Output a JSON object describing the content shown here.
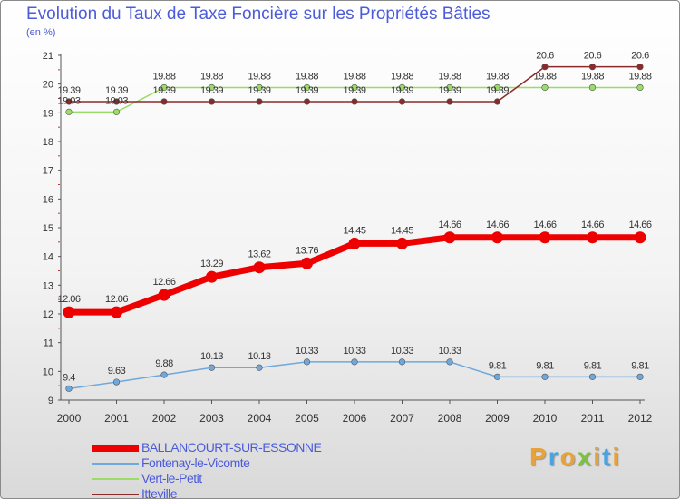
{
  "chart_data": {
    "type": "line",
    "title": "Evolution du Taux de Taxe Foncière sur les Propriétés Bâties",
    "ylabel": "(en %)",
    "xlabel": "",
    "ylim": [
      9,
      21
    ],
    "yticks": [
      "9",
      "10",
      "11",
      "12",
      "13",
      "14",
      "15",
      "16",
      "17",
      "18",
      "19",
      "20",
      "21"
    ],
    "categories": [
      "2000",
      "2001",
      "2002",
      "2003",
      "2004",
      "2005",
      "2006",
      "2007",
      "2008",
      "2009",
      "2010",
      "2011",
      "2012"
    ],
    "series": [
      {
        "name": "BALLANCOURT-SUR-ESSONNE",
        "color": "#ee0000",
        "values": [
          12.06,
          12.06,
          12.66,
          13.29,
          13.62,
          13.76,
          14.45,
          14.45,
          14.66,
          14.66,
          14.66,
          14.66,
          14.66
        ],
        "labels": [
          "12.06",
          "12.06",
          "12.66",
          "13.29",
          "13.62",
          "13.76",
          "14.45",
          "14.45",
          "14.66",
          "14.66",
          "14.66",
          "14.66",
          "14.66"
        ]
      },
      {
        "name": "Fontenay-le-Vicomte",
        "color": "#6fa8dc",
        "values": [
          9.4,
          9.63,
          9.88,
          10.13,
          10.13,
          10.33,
          10.33,
          10.33,
          10.33,
          9.81,
          9.81,
          9.81,
          9.81
        ],
        "labels": [
          "9.4",
          "9.63",
          "9.88",
          "10.13",
          "10.13",
          "10.33",
          "10.33",
          "10.33",
          "10.33",
          "9.81",
          "9.81",
          "9.81",
          "9.81"
        ]
      },
      {
        "name": "Vert-le-Petit",
        "color": "#99dd66",
        "values": [
          19.03,
          19.03,
          19.88,
          19.88,
          19.88,
          19.88,
          19.88,
          19.88,
          19.88,
          19.88,
          19.88,
          19.88,
          19.88
        ],
        "labels": [
          "19.03",
          "19.03",
          "19.88",
          "19.88",
          "19.88",
          "19.88",
          "19.88",
          "19.88",
          "19.88",
          "19.88",
          "19.88",
          "19.88",
          "19.88"
        ]
      },
      {
        "name": "Itteville",
        "color": "#8b2a2a",
        "values": [
          19.39,
          19.39,
          19.39,
          19.39,
          19.39,
          19.39,
          19.39,
          19.39,
          19.39,
          19.39,
          20.6,
          20.6,
          20.6
        ],
        "labels": [
          "19.39",
          "19.39",
          "19.39",
          "19.39",
          "19.39",
          "19.39",
          "19.39",
          "19.39",
          "19.39",
          "19.39",
          "20.6",
          "20.6",
          "20.6"
        ]
      }
    ],
    "legend_position": "bottom-left",
    "grid": false
  },
  "logo": {
    "letters": [
      "P",
      "r",
      "o",
      "x",
      "i",
      "t",
      "i"
    ],
    "colors": [
      "#e8a23a",
      "#4aa3df",
      "#e8a23a",
      "#7cc242",
      "#e8a23a",
      "#4aa3df",
      "#e8a23a"
    ]
  }
}
